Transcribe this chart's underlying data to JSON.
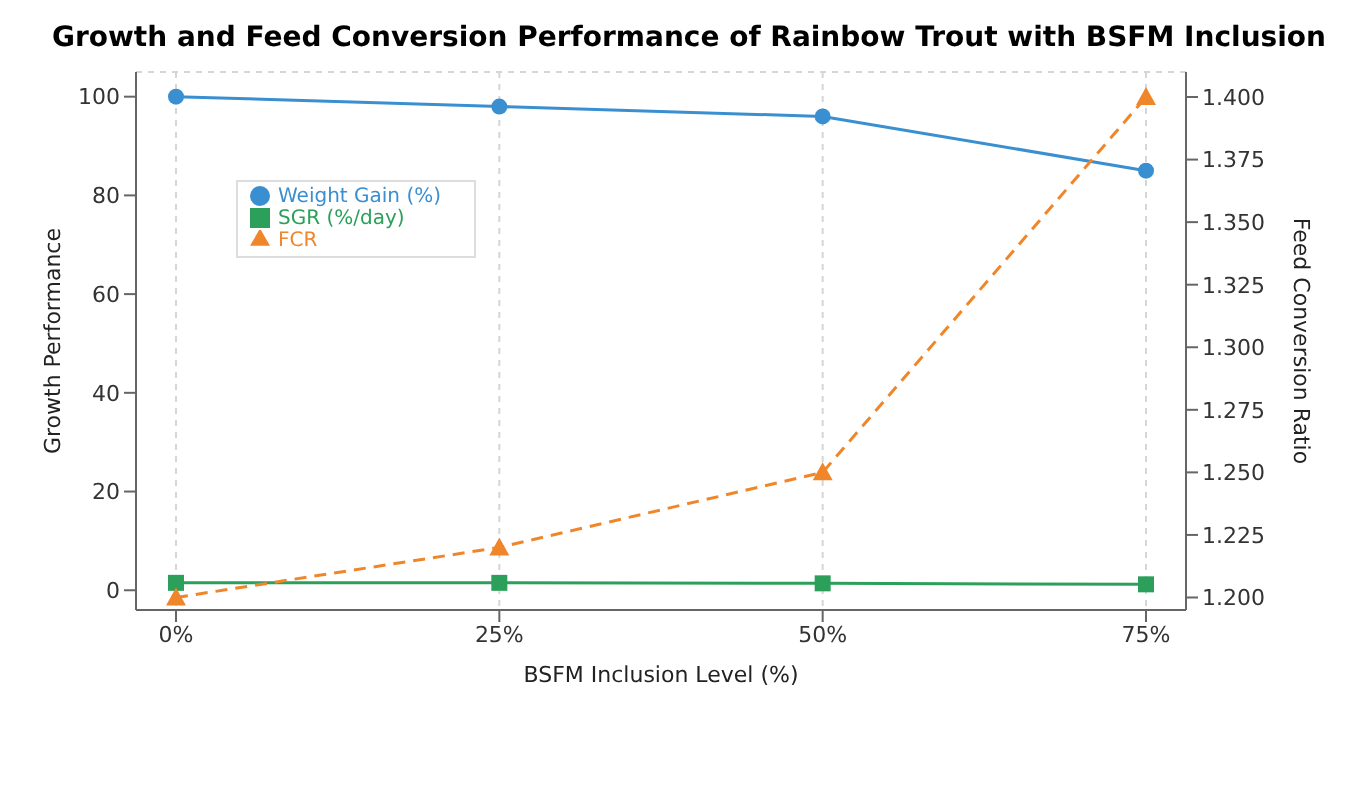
{
  "chart_data": {
    "type": "line",
    "title": "Growth and Feed Conversion Performance of Rainbow Trout with BSFM Inclusion",
    "xlabel": "BSFM Inclusion Level (%)",
    "ylabel": "Growth Performance",
    "y2label": "Feed Conversion Ratio",
    "categories": [
      "0%",
      "25%",
      "50%",
      "75%"
    ],
    "series": [
      {
        "name": "Weight Gain (%)",
        "color": "#3a8fd0",
        "values": [
          100,
          98,
          96,
          85
        ],
        "marker": "circle",
        "line_style": "solid"
      },
      {
        "name": "SGR (%/day)",
        "color": "#2ca05a",
        "values": [
          1.5,
          1.5,
          1.4,
          1.2
        ],
        "marker": "square",
        "line_style": "solid"
      },
      {
        "name": "FCR",
        "color": "#f0862a",
        "values": [
          1.2,
          1.22,
          1.25,
          1.4
        ],
        "marker": "triangle",
        "line_style": "dashed",
        "axis": "y2"
      }
    ],
    "ylim": [
      -4,
      105
    ],
    "yticks": [
      0,
      20,
      40,
      60,
      80,
      100
    ],
    "y2lim": [
      1.195,
      1.41
    ],
    "y2ticks": [
      {
        "value": 1.2,
        "label": "1.200"
      },
      1.225,
      {
        "value": 1.25,
        "label": "1.250"
      },
      1.275,
      {
        "value": 1.3,
        "label": "1.300"
      },
      1.325,
      {
        "value": 1.35,
        "label": "1.350"
      },
      1.375,
      {
        "value": 1.4,
        "label": "1.400"
      }
    ],
    "grid": true,
    "legend": "top left"
  }
}
